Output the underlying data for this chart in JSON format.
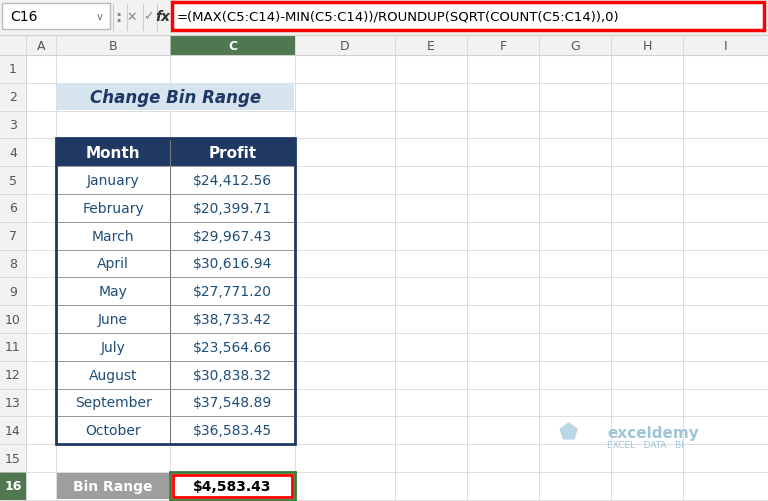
{
  "formula_bar_text": "=(MAX(C5:C14)-MIN(C5:C14))/ROUNDUP(SQRT(COUNT(C5:C14)),0)",
  "cell_ref": "C16",
  "title": "Change Bin Range",
  "col_headers": [
    "Month",
    "Profit"
  ],
  "months": [
    "January",
    "February",
    "March",
    "April",
    "May",
    "June",
    "July",
    "August",
    "September",
    "October"
  ],
  "profits": [
    "$24,412.56",
    "$20,399.71",
    "$29,967.43",
    "$30,616.94",
    "$27,771.20",
    "$38,733.42",
    "$23,564.66",
    "$30,838.32",
    "$37,548.89",
    "$36,583.45"
  ],
  "bin_range_label": "Bin Range",
  "bin_range_value": "$4,583.43",
  "col_letters": [
    "A",
    "B",
    "C",
    "D",
    "E",
    "F",
    "G",
    "H",
    "I"
  ],
  "row_numbers": [
    "1",
    "2",
    "3",
    "4",
    "5",
    "6",
    "7",
    "8",
    "9",
    "10",
    "11",
    "12",
    "13",
    "14",
    "15",
    "16"
  ],
  "header_bg": "#1F3864",
  "header_fg": "#FFFFFF",
  "title_bg": "#D6E4F0",
  "title_fg": "#1F3864",
  "cell_fg": "#1F4E79",
  "formula_bar_border": "#FF0000",
  "bin_range_cell_border": "#FF0000",
  "bin_range_label_bg": "#9E9E9E",
  "bin_range_label_fg": "#FFFFFF",
  "selected_col_bg": "#507850",
  "selected_col_header_bg": "#4E7E4E",
  "top_bar_bg": "#F2F2F2",
  "watermark_color": "#90BAD0",
  "grid_color": "#D0D0D0"
}
